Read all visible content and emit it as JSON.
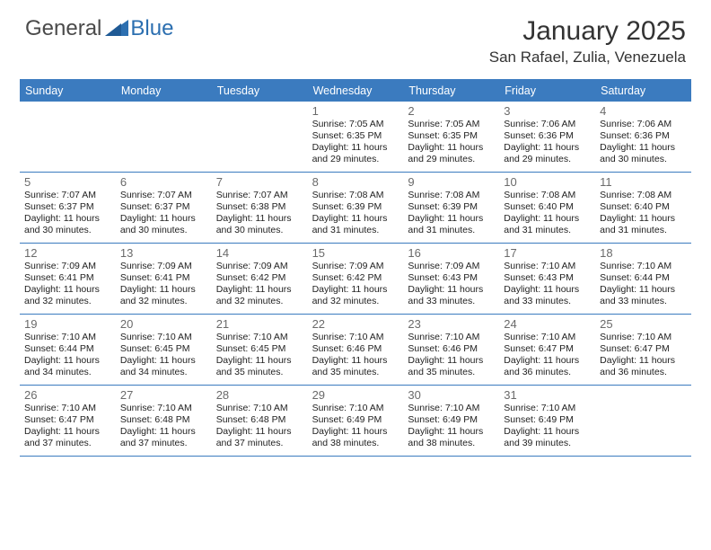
{
  "logo": {
    "text1": "General",
    "text2": "Blue"
  },
  "title": "January 2025",
  "location": "San Rafael, Zulia, Venezuela",
  "colors": {
    "header_bg": "#3b7bbf",
    "header_text": "#ffffff",
    "border": "#3b7bbf",
    "daynum": "#6a6a6a",
    "body_text": "#222222",
    "logo_gray": "#4a4a4a",
    "logo_blue": "#2c6fb0"
  },
  "typography": {
    "title_fontsize": 30,
    "location_fontsize": 17,
    "dayheader_fontsize": 12.5,
    "daynum_fontsize": 13,
    "cell_fontsize": 10.5
  },
  "day_names": [
    "Sunday",
    "Monday",
    "Tuesday",
    "Wednesday",
    "Thursday",
    "Friday",
    "Saturday"
  ],
  "weeks": [
    [
      {
        "n": "",
        "sr": "",
        "ss": "",
        "dl": ""
      },
      {
        "n": "",
        "sr": "",
        "ss": "",
        "dl": ""
      },
      {
        "n": "",
        "sr": "",
        "ss": "",
        "dl": ""
      },
      {
        "n": "1",
        "sr": "7:05 AM",
        "ss": "6:35 PM",
        "dl": "11 hours and 29 minutes."
      },
      {
        "n": "2",
        "sr": "7:05 AM",
        "ss": "6:35 PM",
        "dl": "11 hours and 29 minutes."
      },
      {
        "n": "3",
        "sr": "7:06 AM",
        "ss": "6:36 PM",
        "dl": "11 hours and 29 minutes."
      },
      {
        "n": "4",
        "sr": "7:06 AM",
        "ss": "6:36 PM",
        "dl": "11 hours and 30 minutes."
      }
    ],
    [
      {
        "n": "5",
        "sr": "7:07 AM",
        "ss": "6:37 PM",
        "dl": "11 hours and 30 minutes."
      },
      {
        "n": "6",
        "sr": "7:07 AM",
        "ss": "6:37 PM",
        "dl": "11 hours and 30 minutes."
      },
      {
        "n": "7",
        "sr": "7:07 AM",
        "ss": "6:38 PM",
        "dl": "11 hours and 30 minutes."
      },
      {
        "n": "8",
        "sr": "7:08 AM",
        "ss": "6:39 PM",
        "dl": "11 hours and 31 minutes."
      },
      {
        "n": "9",
        "sr": "7:08 AM",
        "ss": "6:39 PM",
        "dl": "11 hours and 31 minutes."
      },
      {
        "n": "10",
        "sr": "7:08 AM",
        "ss": "6:40 PM",
        "dl": "11 hours and 31 minutes."
      },
      {
        "n": "11",
        "sr": "7:08 AM",
        "ss": "6:40 PM",
        "dl": "11 hours and 31 minutes."
      }
    ],
    [
      {
        "n": "12",
        "sr": "7:09 AM",
        "ss": "6:41 PM",
        "dl": "11 hours and 32 minutes."
      },
      {
        "n": "13",
        "sr": "7:09 AM",
        "ss": "6:41 PM",
        "dl": "11 hours and 32 minutes."
      },
      {
        "n": "14",
        "sr": "7:09 AM",
        "ss": "6:42 PM",
        "dl": "11 hours and 32 minutes."
      },
      {
        "n": "15",
        "sr": "7:09 AM",
        "ss": "6:42 PM",
        "dl": "11 hours and 32 minutes."
      },
      {
        "n": "16",
        "sr": "7:09 AM",
        "ss": "6:43 PM",
        "dl": "11 hours and 33 minutes."
      },
      {
        "n": "17",
        "sr": "7:10 AM",
        "ss": "6:43 PM",
        "dl": "11 hours and 33 minutes."
      },
      {
        "n": "18",
        "sr": "7:10 AM",
        "ss": "6:44 PM",
        "dl": "11 hours and 33 minutes."
      }
    ],
    [
      {
        "n": "19",
        "sr": "7:10 AM",
        "ss": "6:44 PM",
        "dl": "11 hours and 34 minutes."
      },
      {
        "n": "20",
        "sr": "7:10 AM",
        "ss": "6:45 PM",
        "dl": "11 hours and 34 minutes."
      },
      {
        "n": "21",
        "sr": "7:10 AM",
        "ss": "6:45 PM",
        "dl": "11 hours and 35 minutes."
      },
      {
        "n": "22",
        "sr": "7:10 AM",
        "ss": "6:46 PM",
        "dl": "11 hours and 35 minutes."
      },
      {
        "n": "23",
        "sr": "7:10 AM",
        "ss": "6:46 PM",
        "dl": "11 hours and 35 minutes."
      },
      {
        "n": "24",
        "sr": "7:10 AM",
        "ss": "6:47 PM",
        "dl": "11 hours and 36 minutes."
      },
      {
        "n": "25",
        "sr": "7:10 AM",
        "ss": "6:47 PM",
        "dl": "11 hours and 36 minutes."
      }
    ],
    [
      {
        "n": "26",
        "sr": "7:10 AM",
        "ss": "6:47 PM",
        "dl": "11 hours and 37 minutes."
      },
      {
        "n": "27",
        "sr": "7:10 AM",
        "ss": "6:48 PM",
        "dl": "11 hours and 37 minutes."
      },
      {
        "n": "28",
        "sr": "7:10 AM",
        "ss": "6:48 PM",
        "dl": "11 hours and 37 minutes."
      },
      {
        "n": "29",
        "sr": "7:10 AM",
        "ss": "6:49 PM",
        "dl": "11 hours and 38 minutes."
      },
      {
        "n": "30",
        "sr": "7:10 AM",
        "ss": "6:49 PM",
        "dl": "11 hours and 38 minutes."
      },
      {
        "n": "31",
        "sr": "7:10 AM",
        "ss": "6:49 PM",
        "dl": "11 hours and 39 minutes."
      },
      {
        "n": "",
        "sr": "",
        "ss": "",
        "dl": ""
      }
    ]
  ],
  "labels": {
    "sunrise": "Sunrise:",
    "sunset": "Sunset:",
    "daylight": "Daylight:"
  }
}
